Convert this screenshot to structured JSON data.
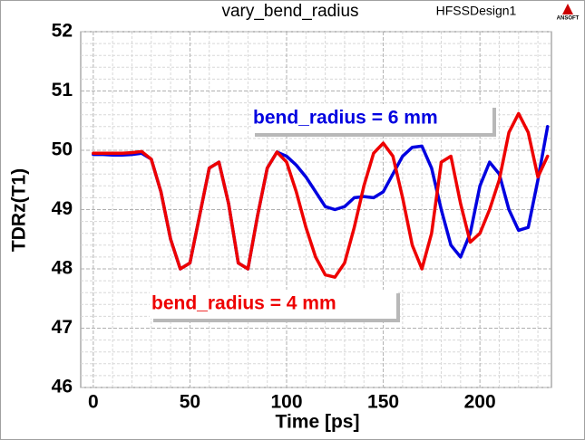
{
  "chart_data": {
    "type": "line",
    "title": "vary_bend_radius",
    "design_name": "HFSSDesign1",
    "logo_text": "ANSOFT",
    "x_label": "Time [ps]",
    "y_label": "TDRz(T1)",
    "xlim": [
      -6.5,
      237
    ],
    "ylim": [
      46,
      52
    ],
    "xticks": [
      0,
      50,
      100,
      150,
      200
    ],
    "yticks": [
      46,
      47,
      48,
      49,
      50,
      51,
      52
    ],
    "xminorticks": [
      10,
      20,
      30,
      40,
      60,
      70,
      80,
      90,
      110,
      120,
      130,
      140,
      160,
      170,
      180,
      190,
      210,
      220,
      230
    ],
    "yminorticks": [
      46.2,
      46.4,
      46.6,
      46.8,
      47.2,
      47.4,
      47.6,
      47.8,
      48.2,
      48.4,
      48.6,
      48.8,
      49.2,
      49.4,
      49.6,
      49.8,
      50.2,
      50.4,
      50.6,
      50.8,
      51.2,
      51.4,
      51.6,
      51.8
    ],
    "grid": true,
    "x": [
      0,
      5,
      10,
      15,
      20,
      25,
      30,
      35,
      40,
      45,
      50,
      55,
      60,
      65,
      70,
      75,
      80,
      85,
      90,
      95,
      100,
      105,
      110,
      115,
      120,
      125,
      130,
      135,
      140,
      145,
      150,
      155,
      160,
      165,
      170,
      175,
      180,
      185,
      190,
      195,
      200,
      205,
      210,
      215,
      220,
      225,
      230,
      235
    ],
    "series": [
      {
        "name": "bend_radius = 6 mm",
        "color": "#0000e0",
        "values": [
          49.93,
          49.93,
          49.92,
          49.92,
          49.93,
          49.95,
          49.85,
          49.3,
          48.5,
          48.0,
          48.1,
          48.9,
          49.7,
          49.8,
          49.1,
          48.1,
          48.0,
          48.9,
          49.7,
          49.97,
          49.9,
          49.75,
          49.55,
          49.3,
          49.05,
          49.0,
          49.05,
          49.2,
          49.22,
          49.2,
          49.3,
          49.6,
          49.9,
          50.05,
          50.07,
          49.7,
          49.0,
          48.4,
          48.2,
          48.6,
          49.4,
          49.8,
          49.6,
          49.0,
          48.65,
          48.7,
          49.5,
          50.4
        ]
      },
      {
        "name": "bend_radius = 4 mm",
        "color": "#ee0000",
        "values": [
          49.95,
          49.95,
          49.95,
          49.95,
          49.96,
          49.98,
          49.85,
          49.3,
          48.5,
          48.0,
          48.1,
          48.9,
          49.7,
          49.8,
          49.1,
          48.1,
          48.0,
          48.9,
          49.7,
          49.97,
          49.8,
          49.3,
          48.7,
          48.2,
          47.9,
          47.86,
          48.1,
          48.7,
          49.4,
          49.95,
          50.12,
          49.9,
          49.2,
          48.4,
          48.0,
          48.6,
          49.8,
          49.9,
          49.1,
          48.45,
          48.6,
          49.0,
          49.5,
          50.3,
          50.62,
          50.3,
          49.55,
          49.9
        ]
      }
    ]
  }
}
